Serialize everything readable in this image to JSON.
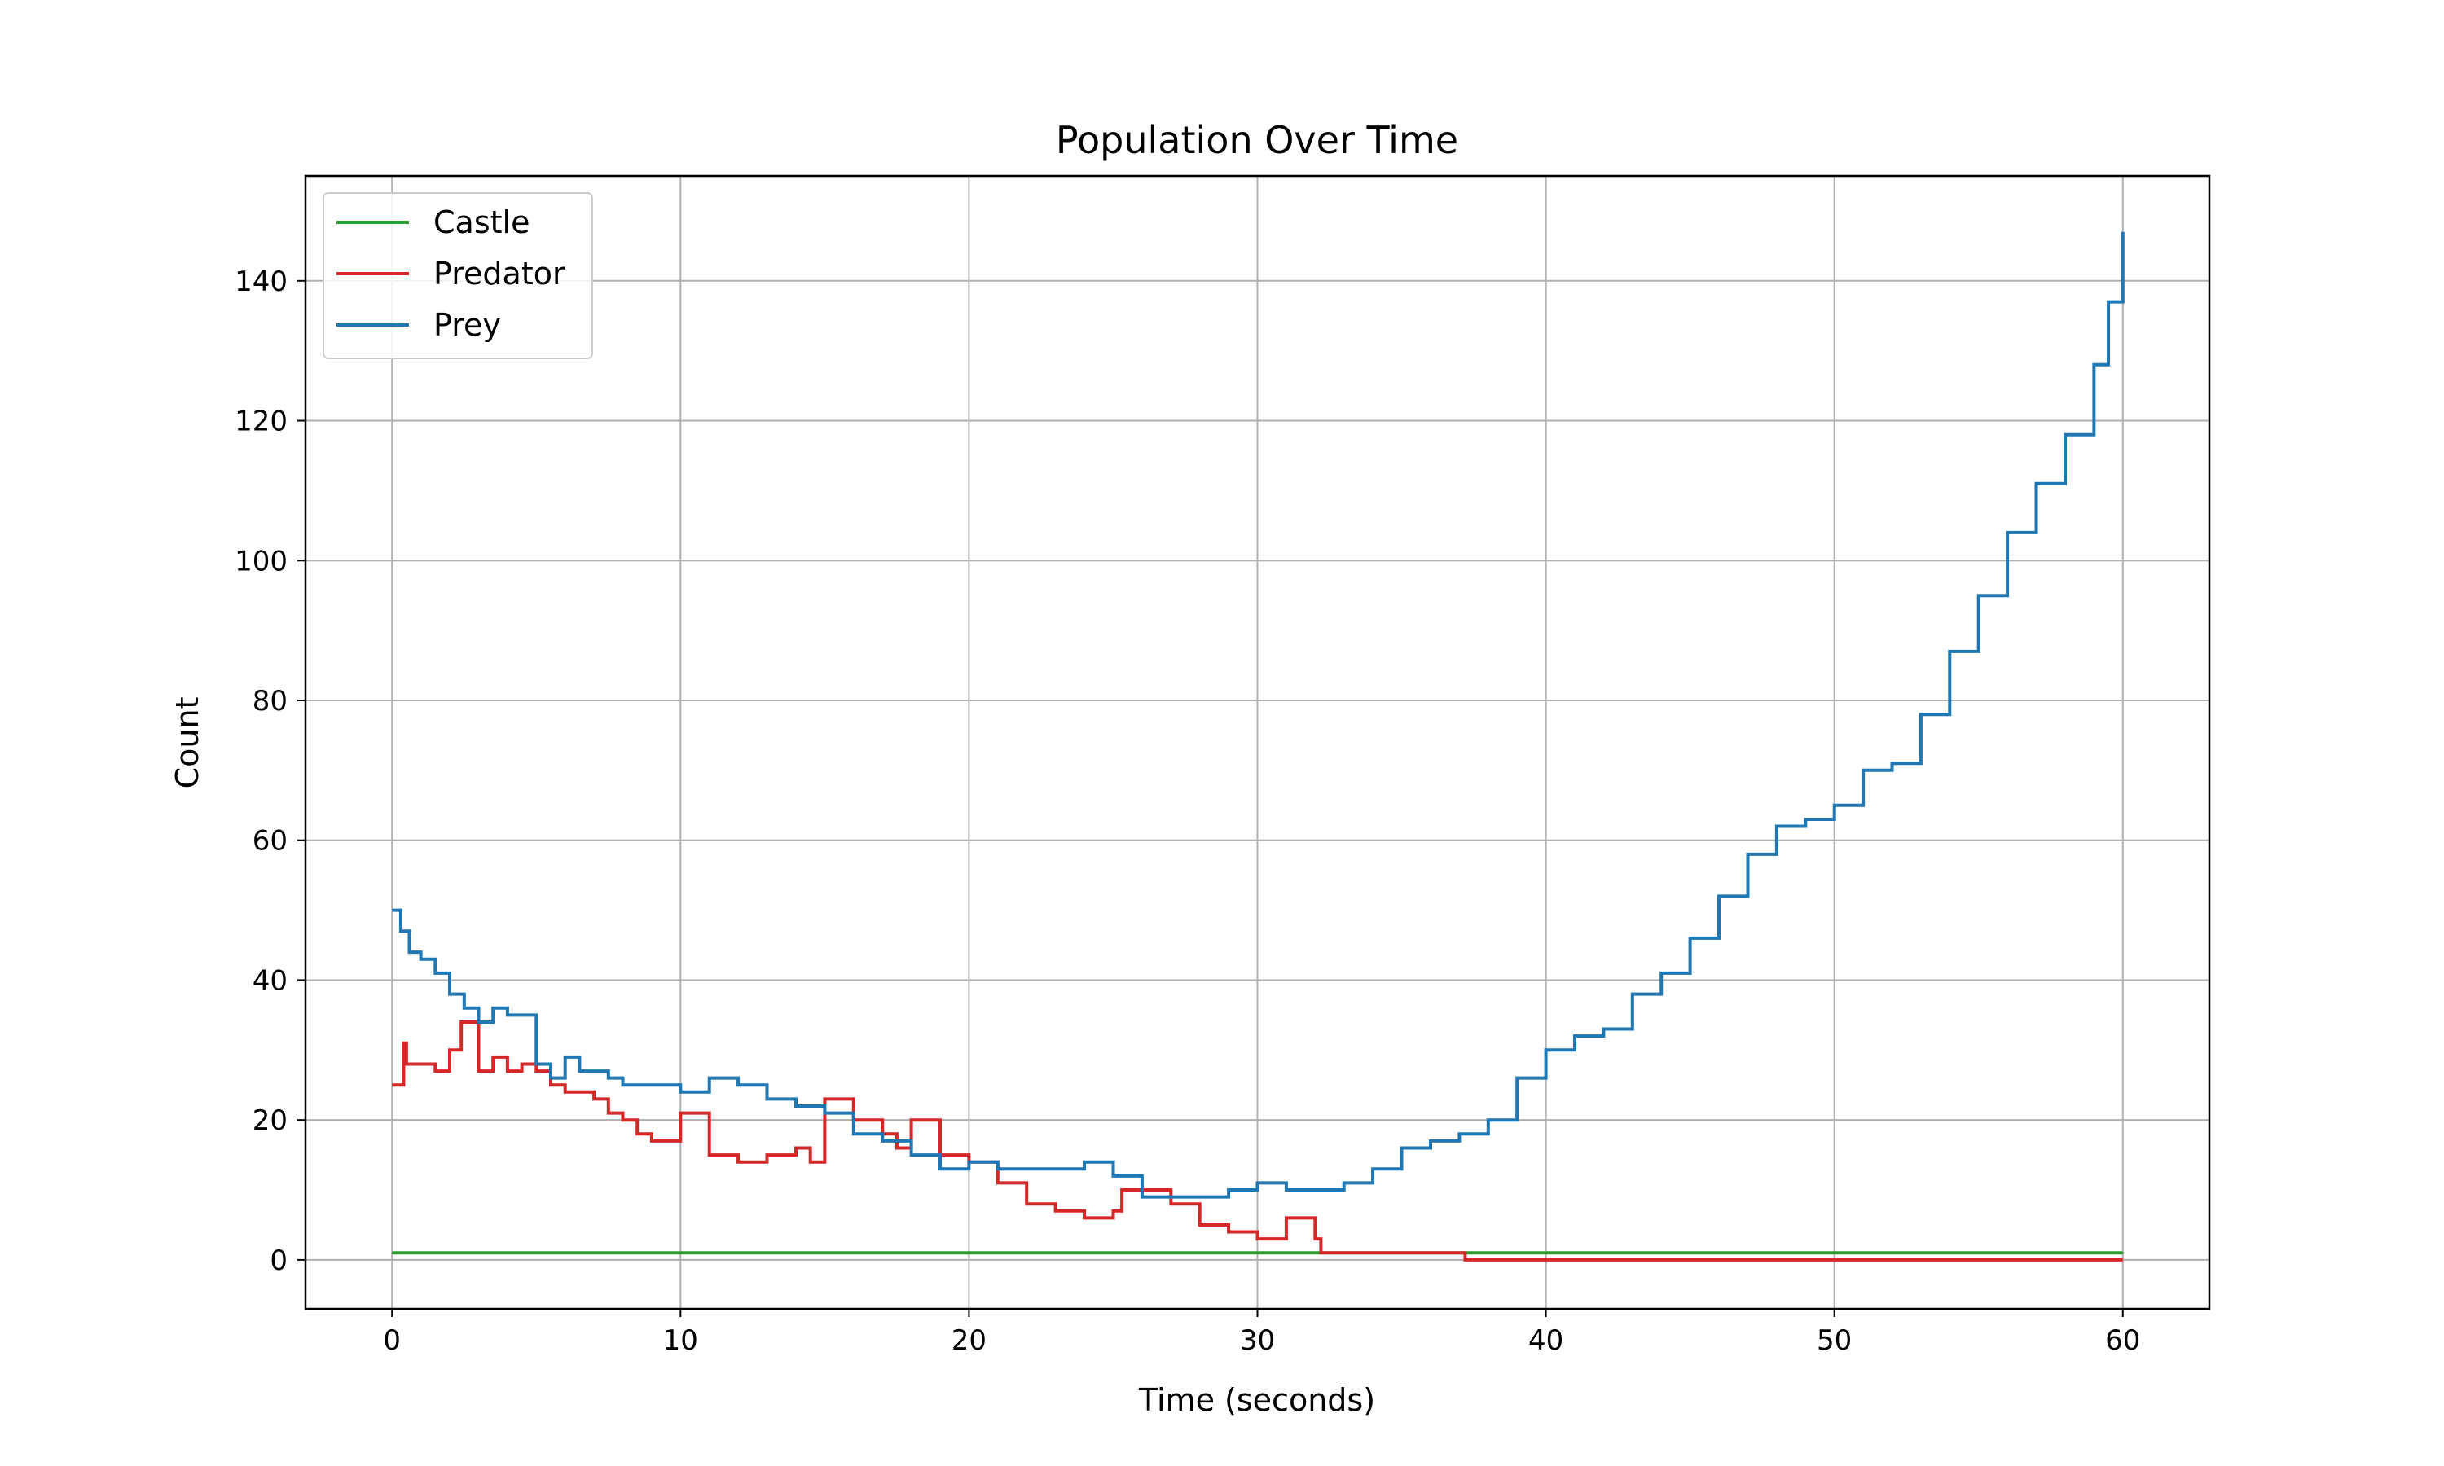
{
  "chart_data": {
    "type": "line",
    "title": "Population Over Time",
    "xlabel": "Time (seconds)",
    "ylabel": "Count",
    "xlim": [
      -3,
      63
    ],
    "ylim": [
      -7,
      155
    ],
    "xticks": [
      0,
      10,
      20,
      30,
      40,
      50,
      60
    ],
    "yticks": [
      0,
      20,
      40,
      60,
      80,
      100,
      120,
      140
    ],
    "xtick_labels": [
      "0",
      "10",
      "20",
      "30",
      "40",
      "50",
      "60"
    ],
    "ytick_labels": [
      "0",
      "20",
      "40",
      "60",
      "80",
      "100",
      "120",
      "140"
    ],
    "grid": true,
    "legend_position": "upper-left",
    "series": [
      {
        "name": "Castle",
        "color": "#2ca02c",
        "x": [
          0,
          60
        ],
        "y": [
          1,
          1
        ]
      },
      {
        "name": "Predator",
        "color": "#d62728",
        "x": [
          0,
          0.4,
          0.5,
          1.0,
          1.5,
          2.0,
          2.4,
          3.0,
          3.5,
          4.0,
          4.5,
          5.0,
          5.5,
          6.0,
          7.0,
          7.5,
          8.0,
          8.5,
          9.0,
          10.0,
          11.0,
          12.0,
          13.0,
          14.0,
          14.5,
          15.0,
          16.0,
          17.0,
          17.5,
          18.0,
          19.0,
          20.0,
          21.0,
          22.0,
          23.0,
          24.0,
          25.0,
          25.3,
          26.0,
          27.0,
          28.0,
          29.0,
          30.0,
          31.0,
          32.0,
          32.2,
          37.0,
          37.2,
          60
        ],
        "y": [
          25,
          31,
          28,
          28,
          27,
          30,
          34,
          27,
          29,
          27,
          28,
          27,
          25,
          24,
          23,
          21,
          20,
          18,
          17,
          21,
          15,
          14,
          15,
          16,
          14,
          23,
          20,
          18,
          16,
          20,
          15,
          14,
          11,
          8,
          7,
          6,
          7,
          10,
          10,
          8,
          5,
          4,
          3,
          6,
          3,
          1,
          1,
          0,
          0
        ]
      },
      {
        "name": "Prey",
        "color": "#1f77b4",
        "x": [
          0,
          0.3,
          0.6,
          1.0,
          1.5,
          2.0,
          2.5,
          3.0,
          3.5,
          4.0,
          5.0,
          5.5,
          6.0,
          6.5,
          7.0,
          7.5,
          8.0,
          9.0,
          10.0,
          11.0,
          12.0,
          13.0,
          14.0,
          15.0,
          16.0,
          17.0,
          18.0,
          19.0,
          20.0,
          21.0,
          22.0,
          23.0,
          24.0,
          25.0,
          26.0,
          27.0,
          28.0,
          29.0,
          30.0,
          31.0,
          32.0,
          33.0,
          34.0,
          35.0,
          36.0,
          37.0,
          38.0,
          39.0,
          40.0,
          41.0,
          42.0,
          43.0,
          44.0,
          45.0,
          46.0,
          47.0,
          48.0,
          49.0,
          50.0,
          51.0,
          52.0,
          53.0,
          54.0,
          55.0,
          56.0,
          57.0,
          58.0,
          59.0,
          59.5,
          60.0
        ],
        "y": [
          50,
          47,
          44,
          43,
          41,
          38,
          36,
          34,
          36,
          35,
          28,
          26,
          29,
          27,
          27,
          26,
          25,
          25,
          24,
          26,
          25,
          23,
          22,
          21,
          18,
          17,
          15,
          13,
          14,
          13,
          13,
          13,
          14,
          12,
          9,
          9,
          9,
          10,
          11,
          10,
          10,
          11,
          13,
          16,
          17,
          18,
          20,
          26,
          30,
          32,
          33,
          38,
          41,
          46,
          52,
          58,
          62,
          63,
          65,
          70,
          71,
          78,
          87,
          95,
          104,
          111,
          118,
          128,
          137,
          147
        ]
      }
    ]
  }
}
